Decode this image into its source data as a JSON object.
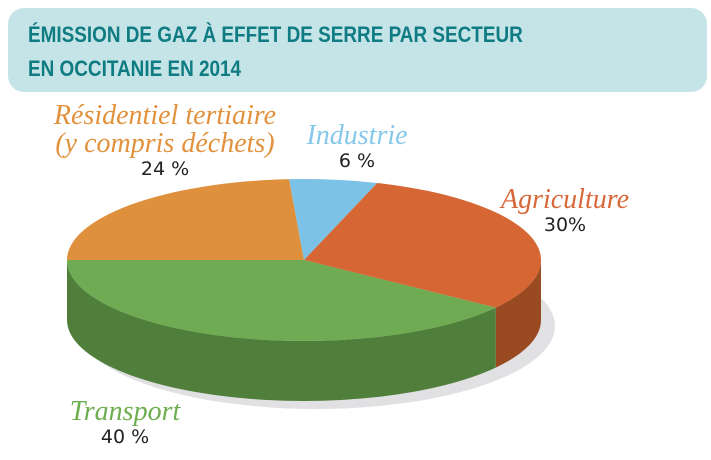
{
  "header": {
    "title_line1": "ÉMISSION DE GAZ À EFFET DE SERRE PAR SECTEUR",
    "title_line2": "EN OCCITANIE EN 2014"
  },
  "colors": {
    "header_bg": "#c5e4e7",
    "header_text": "#0f7b82",
    "shadow": "#e1e1e4"
  },
  "chart_data": {
    "type": "pie",
    "title": "ÉMISSION DE GAZ À EFFET DE SERRE PAR SECTEUR EN OCCITANIE EN 2014",
    "style": "3d",
    "slices": [
      {
        "name": "Résidentiel tertiaire",
        "name_line2": "(y compris déchets)",
        "value": 24,
        "label": "24 %",
        "color": "#de903c",
        "side_color": "#b8742d",
        "label_color": "#e2913c"
      },
      {
        "name": "Industrie",
        "value": 6,
        "label": "6 %",
        "color": "#7cc2e6",
        "side_color": "#5a9dbf",
        "label_color": "#86c8ea"
      },
      {
        "name": "Agriculture",
        "value": 30,
        "label": "30%",
        "color": "#d66734",
        "side_color": "#9a4a21",
        "label_color": "#d8683a"
      },
      {
        "name": "Transport",
        "value": 40,
        "label": "40 %",
        "color": "#6fab52",
        "side_color": "#4f7f3a",
        "label_color": "#6fae50"
      }
    ]
  }
}
